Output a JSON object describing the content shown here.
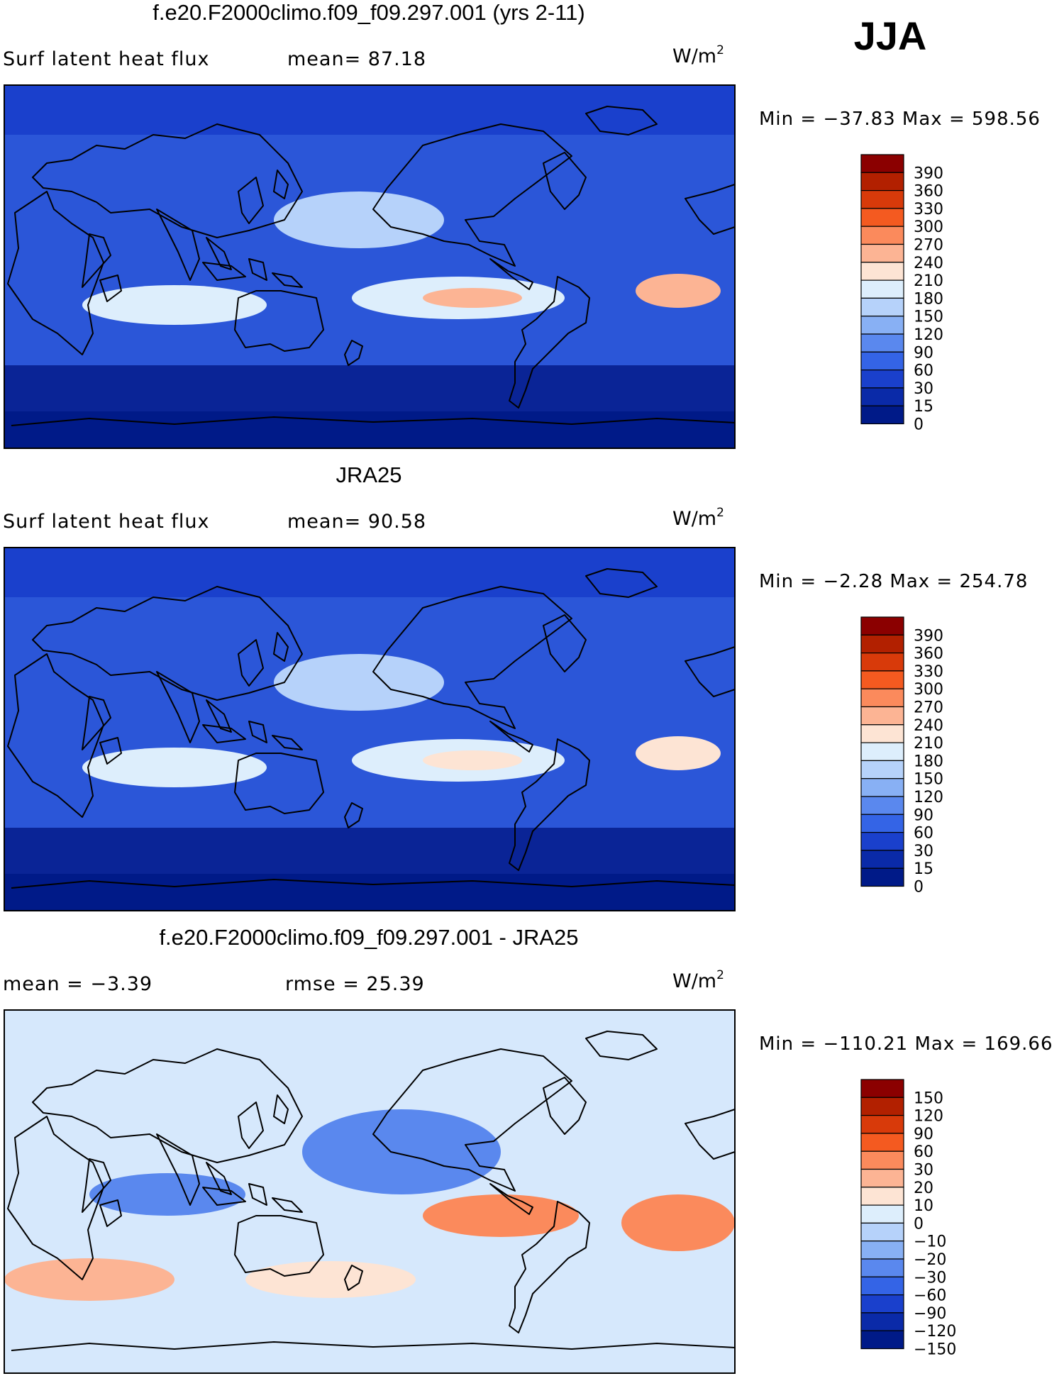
{
  "season": "JJA",
  "units": {
    "base": "W/m",
    "exp": "2"
  },
  "panels": [
    {
      "title": "f.e20.F2000climo.f09_f09.297.001 (yrs 2-11)",
      "variable": "Surf  latent  heat  flux",
      "stat1": "mean=   87.18",
      "stat2": "",
      "minmax": "Min  =  −37.83  Max  =  598.56",
      "colorbar": {
        "labels": [
          "390",
          "360",
          "330",
          "300",
          "270",
          "240",
          "210",
          "180",
          "150",
          "120",
          "90",
          "60",
          "30",
          "15",
          "0"
        ],
        "colors": [
          "#8b0000",
          "#b22000",
          "#d83a0a",
          "#f45a20",
          "#fb8a5c",
          "#fcb494",
          "#fde4d4",
          "#ddeefc",
          "#b6d2fa",
          "#88b0f4",
          "#5a88ee",
          "#3464e6",
          "#1a40cc",
          "#0a2aa8",
          "#001a88"
        ]
      },
      "map_palette": {
        "ocean": "#2b56d8",
        "land": "#1c3fb8",
        "south_ocean": "#0a2496"
      }
    },
    {
      "title": "JRA25",
      "variable": "Surf  latent  heat  flux",
      "stat1": "mean=   90.58",
      "stat2": "",
      "minmax": "Min  =    −2.28  Max  =  254.78",
      "colorbar": {
        "labels": [
          "390",
          "360",
          "330",
          "300",
          "270",
          "240",
          "210",
          "180",
          "150",
          "120",
          "90",
          "60",
          "30",
          "15",
          "0"
        ],
        "colors": [
          "#8b0000",
          "#b22000",
          "#d83a0a",
          "#f45a20",
          "#fb8a5c",
          "#fcb494",
          "#fde4d4",
          "#ddeefc",
          "#b6d2fa",
          "#88b0f4",
          "#5a88ee",
          "#3464e6",
          "#1a40cc",
          "#0a2aa8",
          "#001a88"
        ]
      },
      "map_palette": {
        "ocean": "#2b56d8",
        "land": "#1c3fb8",
        "south_ocean": "#0a2496"
      }
    },
    {
      "title": "f.e20.F2000climo.f09_f09.297.001 - JRA25",
      "variable": "",
      "stat1": "mean  =    −3.39",
      "stat2": "rmse  =    25.39",
      "minmax": "Min  =  −110.21  Max  =  169.66",
      "colorbar": {
        "labels": [
          "150",
          "120",
          "90",
          "60",
          "30",
          "20",
          "10",
          "0",
          "−10",
          "−20",
          "−30",
          "−60",
          "−90",
          "−120",
          "−150"
        ],
        "colors": [
          "#8b0000",
          "#b22000",
          "#d83a0a",
          "#f45a20",
          "#fb8a5c",
          "#fcb494",
          "#fde4d4",
          "#ddeefc",
          "#b6d2fa",
          "#88b0f4",
          "#5a88ee",
          "#3464e6",
          "#1a40cc",
          "#0a2aa8",
          "#001a88"
        ]
      },
      "map_palette": {
        "ocean": "#d6e8fc",
        "land": "#fbe0cf",
        "south_ocean": "#d6e8fc"
      }
    }
  ]
}
